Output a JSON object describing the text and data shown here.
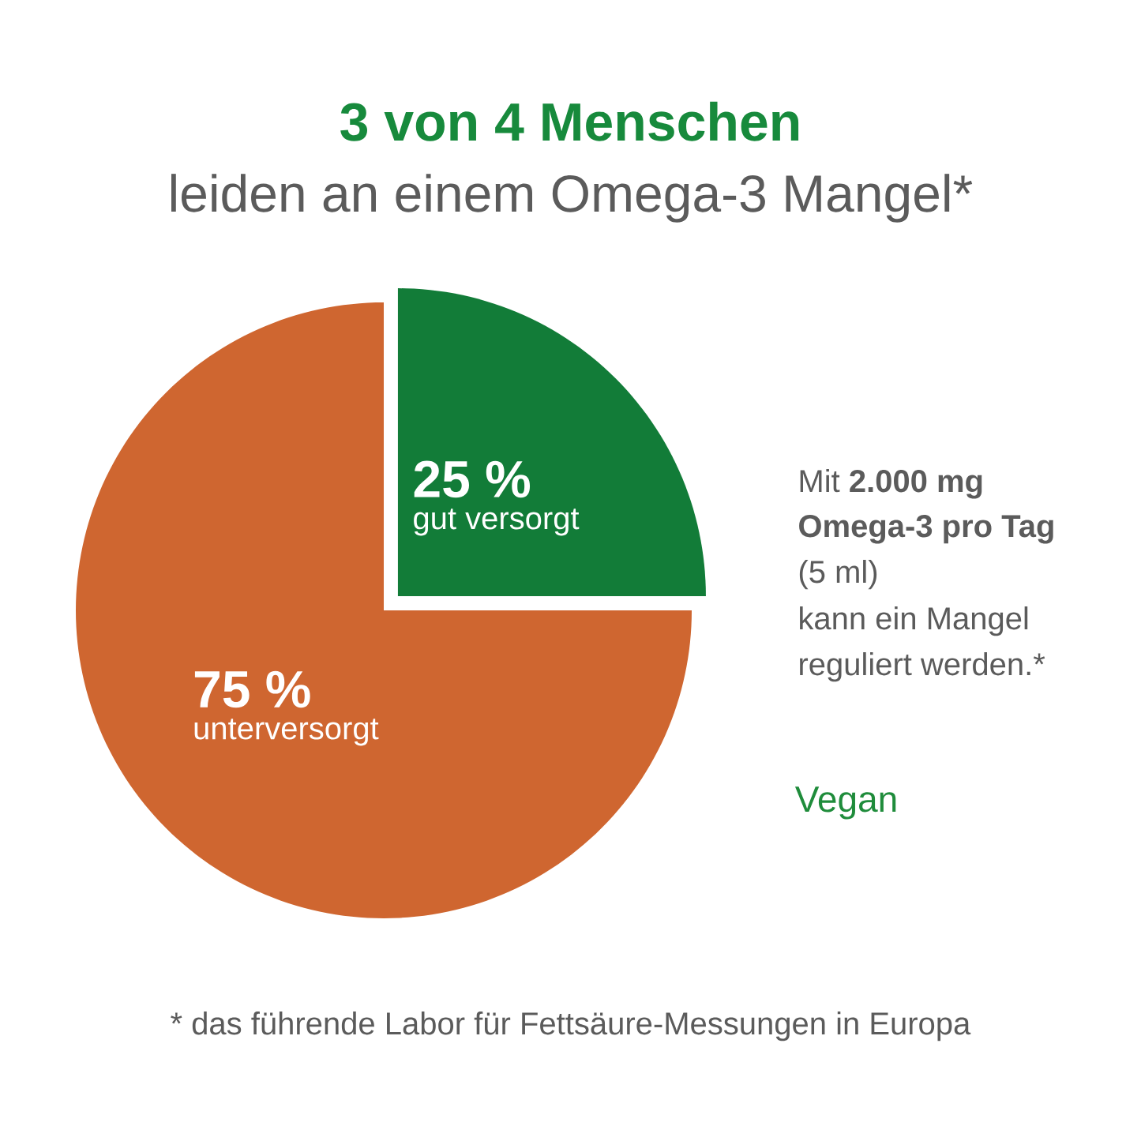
{
  "chart_data": {
    "type": "pie",
    "title": "3 von 4 Menschen",
    "subtitle": "leiden an einem Omega-3 Mangel*",
    "categories": [
      "gut versorgt",
      "unterversorgt"
    ],
    "values": [
      25,
      75
    ],
    "colors": [
      "#127c38",
      "#cf6630"
    ],
    "value_labels": [
      "25 %",
      "75 %"
    ],
    "annotations": [
      "Mit **2.000 mg**",
      "**Omega-3 pro Tag**",
      "(5 ml)",
      "kann ein Mangel",
      "reguliert werden.*",
      "Vegan",
      "* das führende Labor für Fettsäure-Messungen in Europa"
    ]
  }
}
